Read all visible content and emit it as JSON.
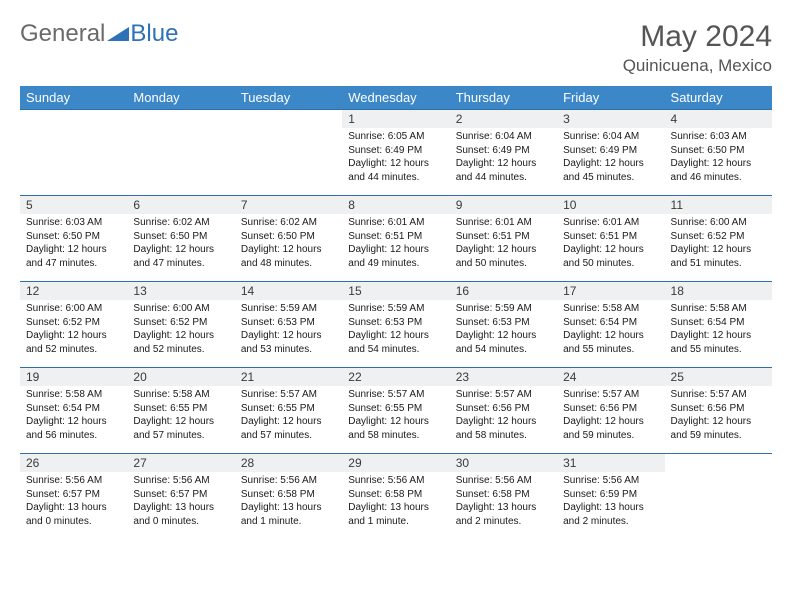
{
  "logo": {
    "part1": "General",
    "part2": "Blue"
  },
  "title": "May 2024",
  "location": "Quinicuena, Mexico",
  "colors": {
    "header_bg": "#3b87c8",
    "header_text": "#ffffff",
    "row_border": "#2f6ea8",
    "daynum_bg": "#eef0f2",
    "title_color": "#555555",
    "logo_blue": "#2d71b8",
    "background": "#ffffff"
  },
  "day_headers": [
    "Sunday",
    "Monday",
    "Tuesday",
    "Wednesday",
    "Thursday",
    "Friday",
    "Saturday"
  ],
  "weeks": [
    [
      {
        "n": "",
        "sunrise": "",
        "sunset": "",
        "daylight": ""
      },
      {
        "n": "",
        "sunrise": "",
        "sunset": "",
        "daylight": ""
      },
      {
        "n": "",
        "sunrise": "",
        "sunset": "",
        "daylight": ""
      },
      {
        "n": "1",
        "sunrise": "6:05 AM",
        "sunset": "6:49 PM",
        "daylight": "12 hours and 44 minutes."
      },
      {
        "n": "2",
        "sunrise": "6:04 AM",
        "sunset": "6:49 PM",
        "daylight": "12 hours and 44 minutes."
      },
      {
        "n": "3",
        "sunrise": "6:04 AM",
        "sunset": "6:49 PM",
        "daylight": "12 hours and 45 minutes."
      },
      {
        "n": "4",
        "sunrise": "6:03 AM",
        "sunset": "6:50 PM",
        "daylight": "12 hours and 46 minutes."
      }
    ],
    [
      {
        "n": "5",
        "sunrise": "6:03 AM",
        "sunset": "6:50 PM",
        "daylight": "12 hours and 47 minutes."
      },
      {
        "n": "6",
        "sunrise": "6:02 AM",
        "sunset": "6:50 PM",
        "daylight": "12 hours and 47 minutes."
      },
      {
        "n": "7",
        "sunrise": "6:02 AM",
        "sunset": "6:50 PM",
        "daylight": "12 hours and 48 minutes."
      },
      {
        "n": "8",
        "sunrise": "6:01 AM",
        "sunset": "6:51 PM",
        "daylight": "12 hours and 49 minutes."
      },
      {
        "n": "9",
        "sunrise": "6:01 AM",
        "sunset": "6:51 PM",
        "daylight": "12 hours and 50 minutes."
      },
      {
        "n": "10",
        "sunrise": "6:01 AM",
        "sunset": "6:51 PM",
        "daylight": "12 hours and 50 minutes."
      },
      {
        "n": "11",
        "sunrise": "6:00 AM",
        "sunset": "6:52 PM",
        "daylight": "12 hours and 51 minutes."
      }
    ],
    [
      {
        "n": "12",
        "sunrise": "6:00 AM",
        "sunset": "6:52 PM",
        "daylight": "12 hours and 52 minutes."
      },
      {
        "n": "13",
        "sunrise": "6:00 AM",
        "sunset": "6:52 PM",
        "daylight": "12 hours and 52 minutes."
      },
      {
        "n": "14",
        "sunrise": "5:59 AM",
        "sunset": "6:53 PM",
        "daylight": "12 hours and 53 minutes."
      },
      {
        "n": "15",
        "sunrise": "5:59 AM",
        "sunset": "6:53 PM",
        "daylight": "12 hours and 54 minutes."
      },
      {
        "n": "16",
        "sunrise": "5:59 AM",
        "sunset": "6:53 PM",
        "daylight": "12 hours and 54 minutes."
      },
      {
        "n": "17",
        "sunrise": "5:58 AM",
        "sunset": "6:54 PM",
        "daylight": "12 hours and 55 minutes."
      },
      {
        "n": "18",
        "sunrise": "5:58 AM",
        "sunset": "6:54 PM",
        "daylight": "12 hours and 55 minutes."
      }
    ],
    [
      {
        "n": "19",
        "sunrise": "5:58 AM",
        "sunset": "6:54 PM",
        "daylight": "12 hours and 56 minutes."
      },
      {
        "n": "20",
        "sunrise": "5:58 AM",
        "sunset": "6:55 PM",
        "daylight": "12 hours and 57 minutes."
      },
      {
        "n": "21",
        "sunrise": "5:57 AM",
        "sunset": "6:55 PM",
        "daylight": "12 hours and 57 minutes."
      },
      {
        "n": "22",
        "sunrise": "5:57 AM",
        "sunset": "6:55 PM",
        "daylight": "12 hours and 58 minutes."
      },
      {
        "n": "23",
        "sunrise": "5:57 AM",
        "sunset": "6:56 PM",
        "daylight": "12 hours and 58 minutes."
      },
      {
        "n": "24",
        "sunrise": "5:57 AM",
        "sunset": "6:56 PM",
        "daylight": "12 hours and 59 minutes."
      },
      {
        "n": "25",
        "sunrise": "5:57 AM",
        "sunset": "6:56 PM",
        "daylight": "12 hours and 59 minutes."
      }
    ],
    [
      {
        "n": "26",
        "sunrise": "5:56 AM",
        "sunset": "6:57 PM",
        "daylight": "13 hours and 0 minutes."
      },
      {
        "n": "27",
        "sunrise": "5:56 AM",
        "sunset": "6:57 PM",
        "daylight": "13 hours and 0 minutes."
      },
      {
        "n": "28",
        "sunrise": "5:56 AM",
        "sunset": "6:58 PM",
        "daylight": "13 hours and 1 minute."
      },
      {
        "n": "29",
        "sunrise": "5:56 AM",
        "sunset": "6:58 PM",
        "daylight": "13 hours and 1 minute."
      },
      {
        "n": "30",
        "sunrise": "5:56 AM",
        "sunset": "6:58 PM",
        "daylight": "13 hours and 2 minutes."
      },
      {
        "n": "31",
        "sunrise": "5:56 AM",
        "sunset": "6:59 PM",
        "daylight": "13 hours and 2 minutes."
      },
      {
        "n": "",
        "sunrise": "",
        "sunset": "",
        "daylight": ""
      }
    ]
  ],
  "labels": {
    "sunrise": "Sunrise: ",
    "sunset": "Sunset: ",
    "daylight": "Daylight: "
  }
}
